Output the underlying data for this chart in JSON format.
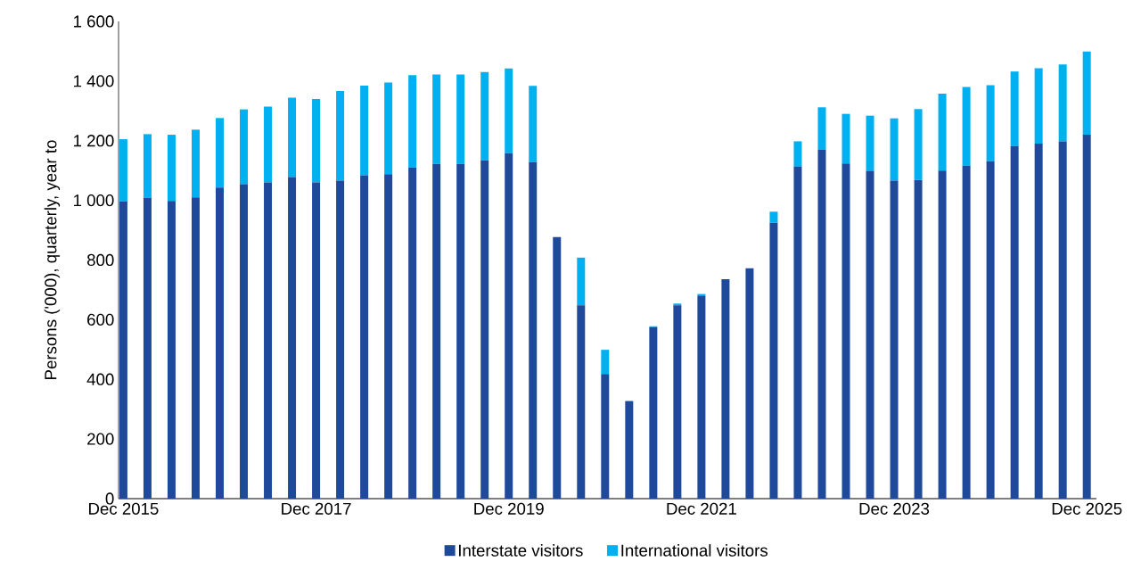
{
  "chart_data": {
    "type": "bar",
    "stacked": true,
    "ylabel": "Persons ('000), quarterly, year to",
    "categories": [
      "Dec 2015",
      null,
      null,
      null,
      null,
      null,
      null,
      null,
      "Dec 2017",
      null,
      null,
      null,
      null,
      null,
      null,
      null,
      "Dec 2019",
      null,
      null,
      null,
      null,
      null,
      null,
      null,
      "Dec 2021",
      null,
      null,
      null,
      null,
      null,
      null,
      null,
      "Dec 2023",
      null,
      null,
      null,
      null,
      null,
      null,
      null,
      "Dec 2025"
    ],
    "series": [
      {
        "name": "Interstate visitors",
        "color": "#1f4a9c",
        "values": [
          996,
          1008,
          998,
          1010,
          1043,
          1054,
          1060,
          1078,
          1060,
          1066,
          1084,
          1088,
          1110,
          1122,
          1122,
          1134,
          1158,
          1128,
          877,
          648,
          418,
          327,
          575,
          648,
          680,
          736,
          772,
          925,
          1113,
          1170,
          1124,
          1098,
          1066,
          1068,
          1100,
          1116,
          1131,
          1182,
          1190,
          1198,
          1220
        ]
      },
      {
        "name": "International visitors",
        "color": "#00b0f0",
        "values": [
          209,
          214,
          222,
          227,
          233,
          251,
          254,
          266,
          280,
          301,
          301,
          307,
          310,
          300,
          300,
          296,
          284,
          256,
          0,
          160,
          81,
          1,
          3,
          6,
          6,
          0,
          0,
          37,
          85,
          142,
          166,
          186,
          209,
          238,
          258,
          264,
          255,
          250,
          253,
          258,
          279
        ]
      }
    ],
    "ylim": [
      0,
      1600
    ],
    "yticks": [
      0,
      200,
      400,
      600,
      800,
      {
        "value": 1000,
        "label": "1 000"
      },
      {
        "value": 1200,
        "label": "1 200"
      },
      {
        "value": 1400,
        "label": "1 400"
      },
      {
        "value": 1600,
        "label": "1 600"
      }
    ],
    "legend": "bottom"
  }
}
